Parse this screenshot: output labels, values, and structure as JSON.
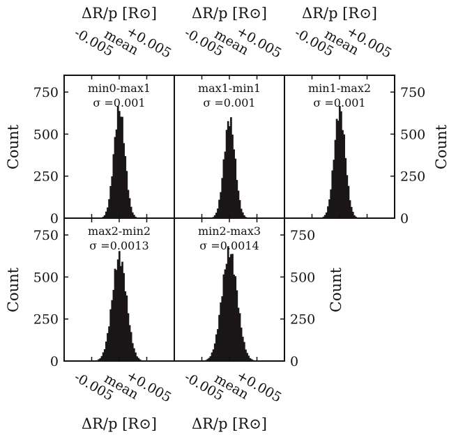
{
  "figure": {
    "xlabel": "ΔR/p [R⊙]",
    "ylabel": "Count",
    "xtick_labels": [
      "-0.005",
      "mean",
      "+0.005"
    ],
    "ytick_labels": [
      "0",
      "250",
      "500",
      "750"
    ]
  },
  "chart_data": [
    {
      "type": "bar",
      "name": "min0-max1",
      "sigma_label": "σ =0.001",
      "sigma": 0.001,
      "mean_offset": 0.0,
      "peak": 650,
      "xlim": [
        -0.01,
        0.01
      ],
      "ylim": [
        0,
        850
      ],
      "xlabel": "ΔR/p [R⊙]",
      "ylabel": "Count"
    },
    {
      "type": "bar",
      "name": "max1-min1",
      "sigma_label": "σ =0.001",
      "sigma": 0.001,
      "mean_offset": 0.0,
      "peak": 585,
      "xlim": [
        -0.01,
        0.01
      ],
      "ylim": [
        0,
        850
      ],
      "xlabel": "ΔR/p [R⊙]",
      "ylabel": ""
    },
    {
      "type": "bar",
      "name": "min1-max2",
      "sigma_label": "σ =0.001",
      "sigma": 0.001,
      "mean_offset": 0.0,
      "peak": 645,
      "xlim": [
        -0.01,
        0.01
      ],
      "ylim": [
        0,
        850
      ],
      "xlabel": "ΔR/p [R⊙]",
      "ylabel": "Count"
    },
    {
      "type": "bar",
      "name": "max2-min2",
      "sigma_label": "σ =0.0013",
      "sigma": 0.0013,
      "mean_offset": 0.0,
      "peak": 620,
      "xlim": [
        -0.01,
        0.01
      ],
      "ylim": [
        0,
        850
      ],
      "xlabel": "ΔR/p [R⊙]",
      "ylabel": "Count"
    },
    {
      "type": "bar",
      "name": "min2-max3",
      "sigma_label": "σ =0.0014",
      "sigma": 0.0014,
      "mean_offset": 0.0,
      "peak": 650,
      "xlim": [
        -0.01,
        0.01
      ],
      "ylim": [
        0,
        850
      ],
      "xlabel": "ΔR/p [R⊙]",
      "ylabel": "Count"
    }
  ]
}
